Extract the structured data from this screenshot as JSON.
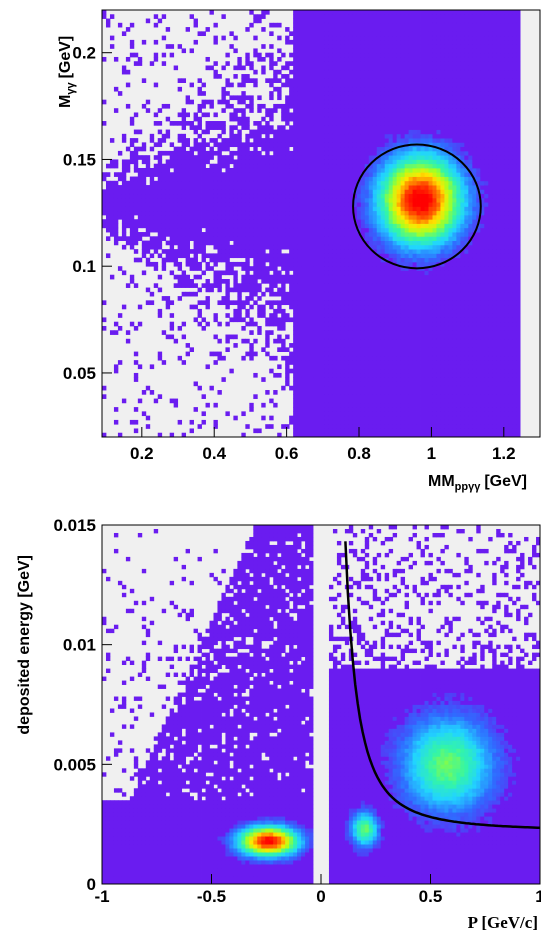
{
  "chart_data": [
    {
      "type": "heatmap",
      "xlabel": {
        "main": "MM",
        "sub": "ppγγ",
        "unit": "[GeV]"
      },
      "ylabel": {
        "main": "M",
        "sub": "γγ",
        "unit": "[GeV]"
      },
      "xlim": [
        0.09,
        1.3
      ],
      "ylim": [
        0.02,
        0.22
      ],
      "x_ticks": [
        "0.2",
        "0.4",
        "0.6",
        "0.8",
        "1",
        "1.2"
      ],
      "x_tick_values": [
        0.2,
        0.4,
        0.6,
        0.8,
        1.0,
        1.2
      ],
      "y_ticks": [
        "0.05",
        "0.1",
        "0.15",
        "0.2"
      ],
      "y_tick_values": [
        0.05,
        0.1,
        0.15,
        0.2
      ],
      "peak": {
        "x": 0.97,
        "y": 0.131
      },
      "empty_band_x": [
        1.24,
        1.3
      ],
      "selection_ellipse": {
        "cx": 0.96,
        "cy": 0.128,
        "rx": 0.18,
        "ry": 0.029
      },
      "colors": {
        "background": "#f0f0f0",
        "base": "#6a1cf0",
        "scale": [
          "#6a1cf0",
          "#2f6cff",
          "#21d4ff",
          "#33f5a8",
          "#a8ff20",
          "#ffe600",
          "#ff6000",
          "#ff0000"
        ]
      }
    },
    {
      "type": "heatmap",
      "xlabel": "P [GeV/c]",
      "ylabel": "deposited energy [GeV]",
      "xlim": [
        -1.0,
        1.0
      ],
      "ylim": [
        0,
        0.015
      ],
      "x_ticks": [
        "-1",
        "-0.5",
        "0",
        "0.5",
        "1"
      ],
      "x_tick_values": [
        -1.0,
        -0.5,
        0.0,
        0.5,
        1.0
      ],
      "y_ticks": [
        "0",
        "0.005",
        "0.01",
        "0.015"
      ],
      "y_tick_values": [
        0,
        0.005,
        0.01,
        0.015
      ],
      "clusters": [
        {
          "x": -0.24,
          "y": 0.0018,
          "level": "max"
        },
        {
          "x": 0.2,
          "y": 0.0023,
          "level": "medium"
        },
        {
          "x": 0.58,
          "y": 0.005,
          "level": "medium"
        }
      ],
      "gap_x": [
        -0.03,
        0.03
      ],
      "cut_curve": {
        "form": "a/x^2 + b",
        "a": 0.00015,
        "b": 0.0022,
        "x_range": [
          0.1,
          1.0
        ]
      },
      "colors": {
        "background": "#f0f0f0",
        "base": "#6a1cf0"
      }
    }
  ]
}
